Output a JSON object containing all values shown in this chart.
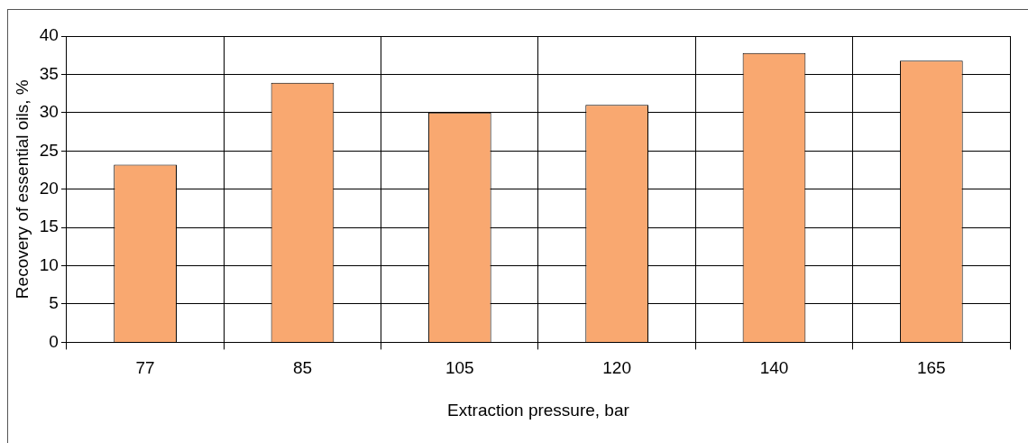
{
  "chart_data": {
    "type": "bar",
    "xlabel": "Extraction pressure, bar",
    "ylabel": "Recovery of essential oils, %",
    "categories": [
      "77",
      "85",
      "105",
      "120",
      "140",
      "165"
    ],
    "values": [
      23.2,
      33.9,
      30,
      31,
      37.8,
      36.8
    ],
    "color": "#f9a870",
    "ylim": [
      0,
      40
    ],
    "yticks": [
      0,
      5,
      10,
      15,
      20,
      25,
      30,
      35,
      40
    ],
    "grid": true,
    "legend": false
  }
}
